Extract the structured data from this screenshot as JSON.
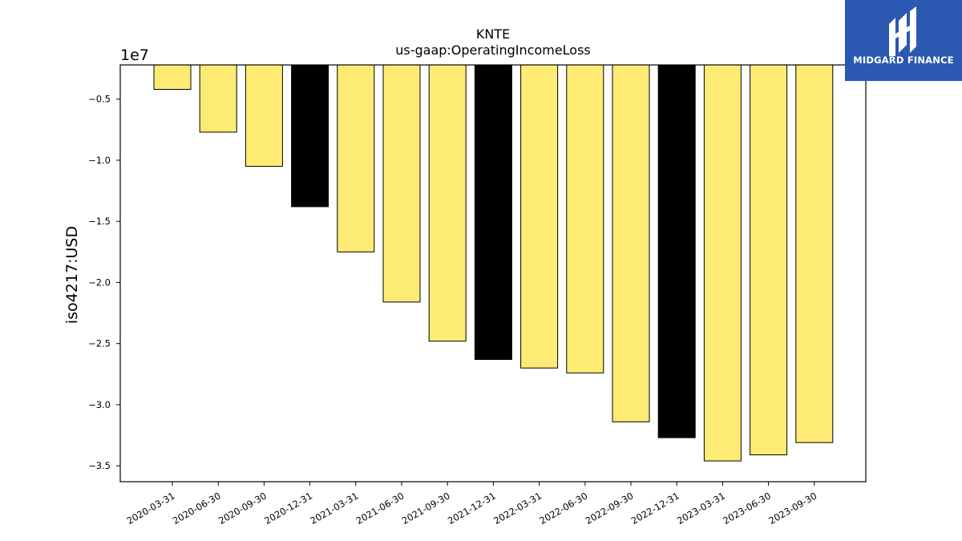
{
  "chart_data": {
    "type": "bar",
    "title": "KNTE",
    "subtitle": "us-gaap:OperatingIncomeLoss",
    "ylabel": "iso4217:USD",
    "xlabel": "",
    "offset_label": "1e7",
    "categories": [
      "2020-03-31",
      "2020-06-30",
      "2020-09-30",
      "2020-12-31",
      "2021-03-31",
      "2021-06-30",
      "2021-09-30",
      "2021-12-31",
      "2022-03-31",
      "2022-06-30",
      "2022-09-30",
      "2022-12-31",
      "2023-03-31",
      "2023-06-30",
      "2023-09-30"
    ],
    "values": [
      -4200000,
      -7700000,
      -10500000,
      -13800000,
      -17500000,
      -21600000,
      -24800000,
      -26300000,
      -27000000,
      -27400000,
      -31400000,
      -32700000,
      -34600000,
      -34100000,
      -33100000
    ],
    "bar_colors": [
      "#fdeb73",
      "#fdeb73",
      "#fdeb73",
      "#000000",
      "#fdeb73",
      "#fdeb73",
      "#fdeb73",
      "#000000",
      "#fdeb73",
      "#fdeb73",
      "#fdeb73",
      "#000000",
      "#fdeb73",
      "#fdeb73",
      "#fdeb73"
    ],
    "yticks": [
      -5000000,
      -10000000,
      -15000000,
      -20000000,
      -25000000,
      -30000000,
      -35000000
    ],
    "ytick_labels": [
      "−0.5",
      "−1.0",
      "−1.5",
      "−2.0",
      "−2.5",
      "−3.0",
      "−3.5"
    ],
    "ylim": [
      -36300000,
      -2200000
    ],
    "grid": false
  },
  "logo": {
    "text": "MIDGARD FINANCE",
    "background": "#2b58b0"
  }
}
